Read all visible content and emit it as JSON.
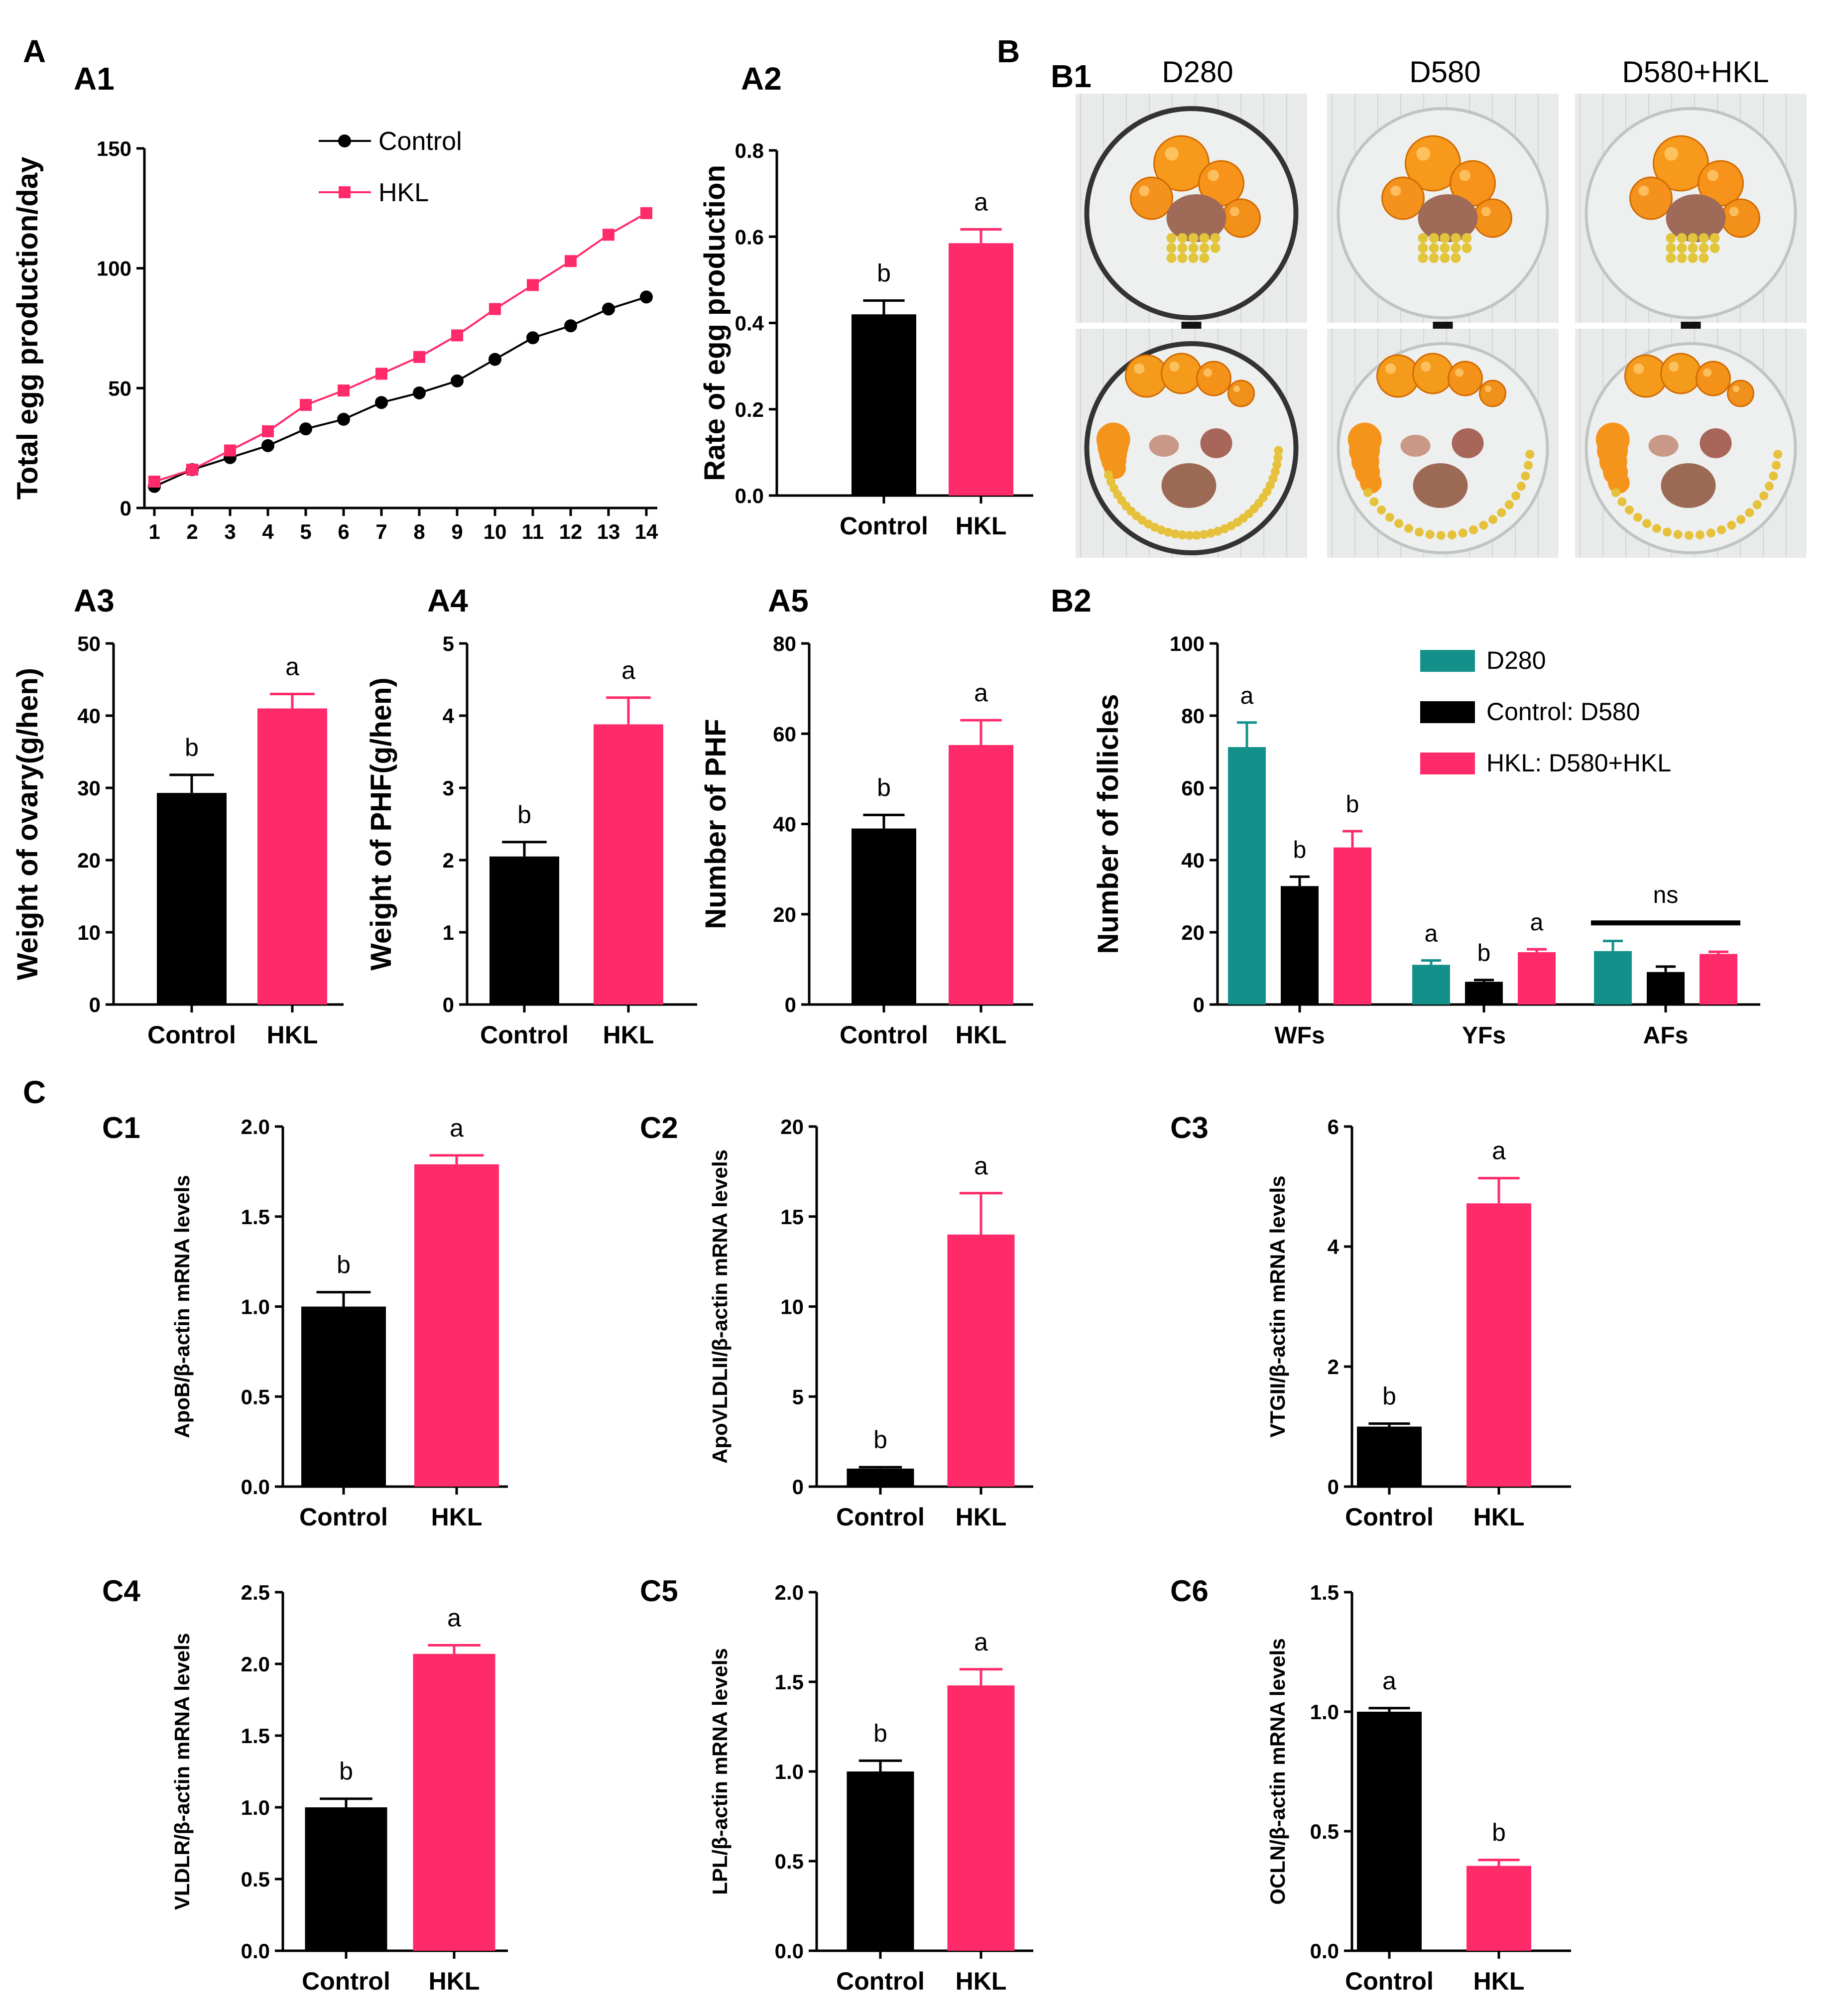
{
  "colors": {
    "control": "#000000",
    "hkl": "#ff2a6a",
    "d280": "#14908a",
    "axis": "#000000"
  },
  "panels": {
    "A": "A",
    "B": "B",
    "C": "C",
    "B1": "B1",
    "B2": "B2"
  },
  "photo": {
    "columns": [
      "D280",
      "D580",
      "D580+HKL"
    ]
  },
  "chart_data": [
    {
      "id": "A1",
      "label": "A1",
      "type": "line",
      "title": "",
      "xlabel": "",
      "ylabel": "Total egg production/day",
      "x": [
        1,
        2,
        3,
        4,
        5,
        6,
        7,
        8,
        9,
        10,
        11,
        12,
        13,
        14
      ],
      "ylim": [
        0,
        150
      ],
      "yticks": [
        0,
        50,
        100,
        150
      ],
      "series": [
        {
          "name": "Control",
          "color_key": "control",
          "marker": "circle",
          "values": [
            9,
            16,
            21,
            26,
            33,
            37,
            44,
            48,
            53,
            62,
            71,
            76,
            83,
            88
          ]
        },
        {
          "name": "HKL",
          "color_key": "hkl",
          "marker": "square",
          "values": [
            11,
            16,
            24,
            32,
            43,
            49,
            56,
            63,
            72,
            83,
            93,
            103,
            114,
            123
          ]
        }
      ]
    },
    {
      "id": "A2",
      "label": "A2",
      "type": "bar",
      "ylabel": "Rate of egg production",
      "categories": [
        "Control",
        "HKL"
      ],
      "values": [
        0.42,
        0.585
      ],
      "errors": [
        0.032,
        0.032
      ],
      "letters": [
        "b",
        "a"
      ],
      "ylim": [
        0,
        0.8
      ],
      "yticks": [
        "0.0",
        "0.2",
        "0.4",
        "0.6",
        "0.8"
      ]
    },
    {
      "id": "A3",
      "label": "A3",
      "type": "bar",
      "ylabel": "Weight of ovary(g/hen)",
      "categories": [
        "Control",
        "HKL"
      ],
      "values": [
        29.3,
        41.0
      ],
      "errors": [
        2.5,
        2.0
      ],
      "letters": [
        "b",
        "a"
      ],
      "ylim": [
        0,
        50
      ],
      "yticks": [
        "0",
        "10",
        "20",
        "30",
        "40",
        "50"
      ]
    },
    {
      "id": "A4",
      "label": "A4",
      "type": "bar",
      "ylabel": "Weight of PHF(g/hen)",
      "categories": [
        "Control",
        "HKL"
      ],
      "values": [
        2.05,
        3.88
      ],
      "errors": [
        0.2,
        0.37
      ],
      "letters": [
        "b",
        "a"
      ],
      "ylim": [
        0,
        5
      ],
      "yticks": [
        "0",
        "1",
        "2",
        "3",
        "4",
        "5"
      ]
    },
    {
      "id": "A5",
      "label": "A5",
      "type": "bar",
      "ylabel": "Number of PHF",
      "categories": [
        "Control",
        "HKL"
      ],
      "values": [
        39,
        57.5
      ],
      "errors": [
        3,
        5.5
      ],
      "letters": [
        "b",
        "a"
      ],
      "ylim": [
        0,
        80
      ],
      "yticks": [
        "0",
        "20",
        "40",
        "60",
        "80"
      ]
    },
    {
      "id": "B2",
      "label": "B2",
      "type": "grouped-bar",
      "ylabel": "Number of follicles",
      "categories": [
        "WFs",
        "YFs",
        "AFs"
      ],
      "ylim": [
        0,
        100
      ],
      "yticks": [
        "0",
        "20",
        "40",
        "60",
        "80",
        "100"
      ],
      "series": [
        {
          "name": "D280",
          "color_key": "d280",
          "values": [
            71.3,
            11.0,
            14.8
          ],
          "errors": [
            6.8,
            1.2,
            2.8
          ]
        },
        {
          "name": "Control: D580",
          "color_key": "control",
          "values": [
            32.8,
            6.3,
            9.0
          ],
          "errors": [
            2.6,
            0.5,
            1.5
          ]
        },
        {
          "name": "HKL: D580+HKL",
          "color_key": "hkl",
          "values": [
            43.5,
            14.5,
            14.0
          ],
          "errors": [
            4.5,
            0.8,
            0.6
          ]
        }
      ],
      "letters": [
        [
          "a",
          "b",
          "b"
        ],
        [
          "a",
          "b",
          "a"
        ],
        [
          "",
          "",
          ""
        ]
      ],
      "group_annotation": {
        "category": "AFs",
        "text": "ns"
      }
    },
    {
      "id": "C1",
      "label": "C1",
      "type": "bar",
      "ylabel": "ApoB/β-actin mRNA levels",
      "categories": [
        "Control",
        "HKL"
      ],
      "values": [
        1.0,
        1.79
      ],
      "errors": [
        0.08,
        0.05
      ],
      "letters": [
        "b",
        "a"
      ],
      "ylim": [
        0,
        2.0
      ],
      "yticks": [
        "0.0",
        "0.5",
        "1.0",
        "1.5",
        "2.0"
      ]
    },
    {
      "id": "C2",
      "label": "C2",
      "type": "bar",
      "ylabel": "ApoVLDLII/β-actin mRNA levels",
      "categories": [
        "Control",
        "HKL"
      ],
      "values": [
        1.0,
        14.0
      ],
      "errors": [
        0.08,
        2.3
      ],
      "letters": [
        "b",
        "a"
      ],
      "ylim": [
        0,
        20
      ],
      "yticks": [
        "0",
        "5",
        "10",
        "15",
        "20"
      ]
    },
    {
      "id": "C3",
      "label": "C3",
      "type": "bar",
      "ylabel": "VTGII/β-actin mRNA levels",
      "categories": [
        "Control",
        "HKL"
      ],
      "values": [
        1.0,
        4.72
      ],
      "errors": [
        0.05,
        0.42
      ],
      "letters": [
        "b",
        "a"
      ],
      "ylim": [
        0,
        6
      ],
      "yticks": [
        "0",
        "2",
        "4",
        "6"
      ]
    },
    {
      "id": "C4",
      "label": "C4",
      "type": "bar",
      "ylabel": "VLDLR/β-actin mRNA levels",
      "categories": [
        "Control",
        "HKL"
      ],
      "values": [
        1.0,
        2.07
      ],
      "errors": [
        0.06,
        0.06
      ],
      "letters": [
        "b",
        "a"
      ],
      "ylim": [
        0,
        2.5
      ],
      "yticks": [
        "0.0",
        "0.5",
        "1.0",
        "1.5",
        "2.0",
        "2.5"
      ]
    },
    {
      "id": "C5",
      "label": "C5",
      "type": "bar",
      "ylabel": "LPL/β-actin mRNA levels",
      "categories": [
        "Control",
        "HKL"
      ],
      "values": [
        1.0,
        1.48
      ],
      "errors": [
        0.06,
        0.09
      ],
      "letters": [
        "b",
        "a"
      ],
      "ylim": [
        0,
        2.0
      ],
      "yticks": [
        "0.0",
        "0.5",
        "1.0",
        "1.5",
        "2.0"
      ]
    },
    {
      "id": "C6",
      "label": "C6",
      "type": "bar",
      "ylabel": "OCLN/β-actin mRNA levels",
      "categories": [
        "Control",
        "HKL"
      ],
      "values": [
        1.0,
        0.355
      ],
      "errors": [
        0.015,
        0.025
      ],
      "letters": [
        "a",
        "b"
      ],
      "ylim": [
        0,
        1.5
      ],
      "yticks": [
        "0.0",
        "0.5",
        "1.0",
        "1.5"
      ]
    }
  ]
}
